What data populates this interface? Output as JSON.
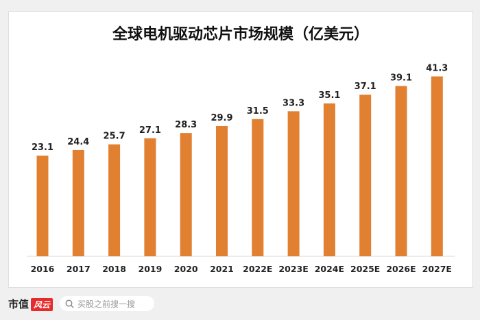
{
  "chart_data": {
    "type": "bar",
    "title": "全球电机驱动芯片市场规模（亿美元）",
    "categories": [
      "2016",
      "2017",
      "2018",
      "2019",
      "2020",
      "2021",
      "2022E",
      "2023E",
      "2024E",
      "2025E",
      "2026E",
      "2027E"
    ],
    "values": [
      23.1,
      24.4,
      25.7,
      27.1,
      28.3,
      29.9,
      31.5,
      33.3,
      35.1,
      37.1,
      39.1,
      41.3
    ],
    "xlabel": "",
    "ylabel": "",
    "ylim": [
      0,
      45
    ],
    "grid": false,
    "data_labels": true,
    "bar_color": "#e08030"
  },
  "footer": {
    "brand": "市值",
    "brand_badge": "风云",
    "search_placeholder": "买股之前搜一搜",
    "search_icon": "search-icon"
  }
}
